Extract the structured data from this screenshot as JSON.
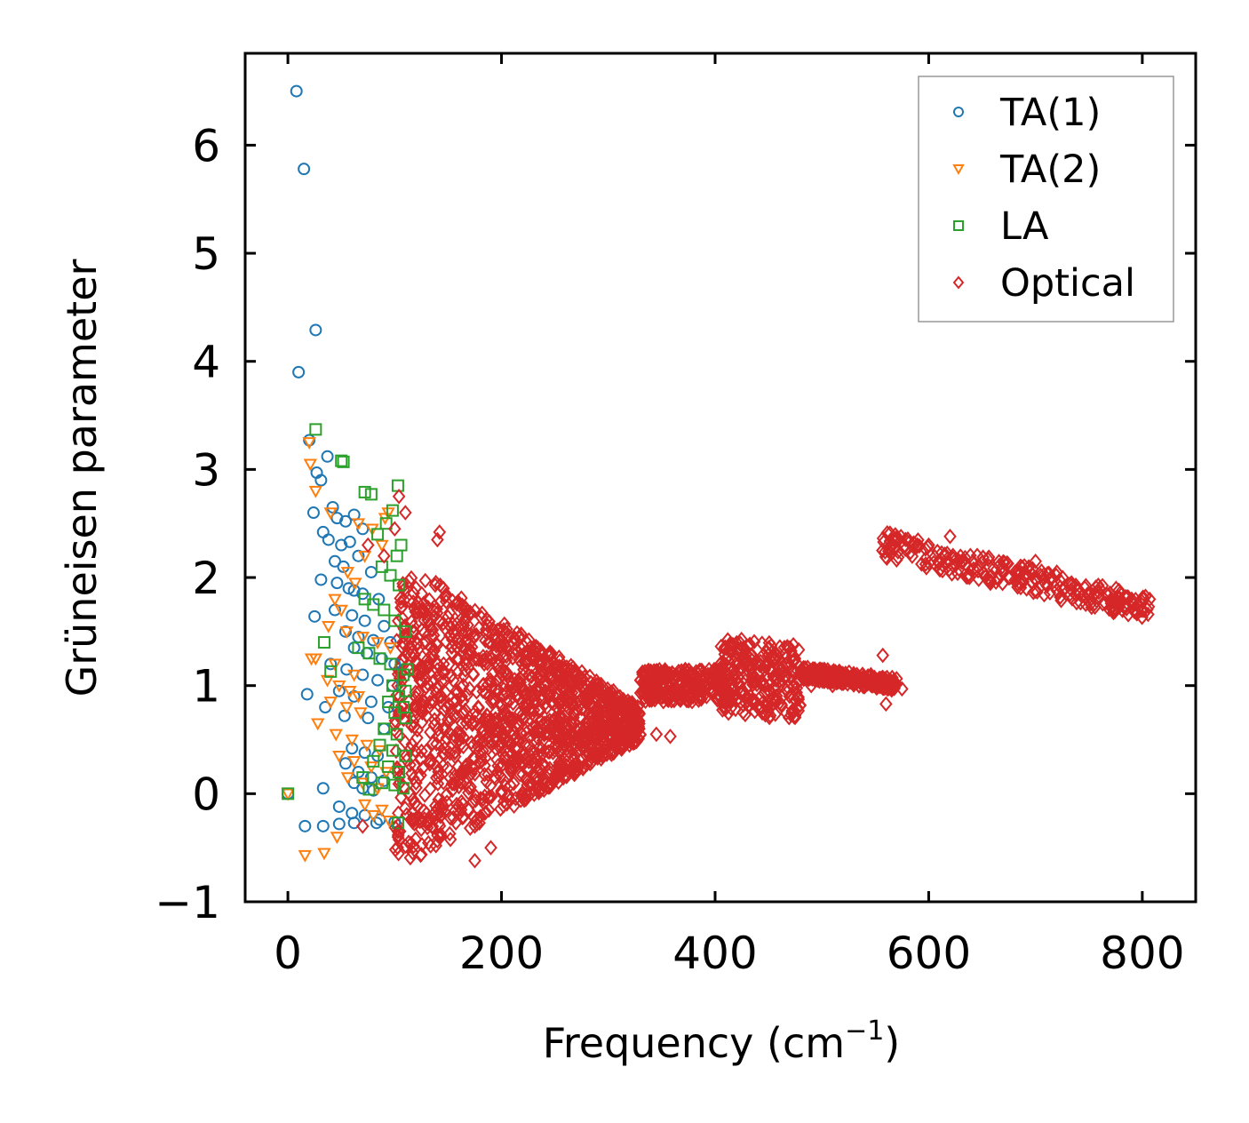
{
  "chart_data": {
    "type": "scatter",
    "title": "",
    "xlabel": "Frequency (cm",
    "xlabel_sup": "−1",
    "xlabel_close": ")",
    "ylabel": "Grüneisen parameter",
    "xlim": [
      -40,
      850
    ],
    "ylim": [
      -1,
      6.85
    ],
    "xticks": [
      0,
      200,
      400,
      600,
      800
    ],
    "xtick_labels": [
      "0",
      "200",
      "400",
      "600",
      "800"
    ],
    "yticks": [
      -1,
      0,
      1,
      2,
      3,
      4,
      5,
      6
    ],
    "ytick_labels": [
      "−1",
      "0",
      "1",
      "2",
      "3",
      "4",
      "5",
      "6"
    ],
    "legend_position": "top-right",
    "grid": false,
    "series": [
      {
        "name": "TA(1)",
        "marker": "circle",
        "color": "#1f77b4",
        "points": [
          [
            0,
            0
          ],
          [
            8,
            6.5
          ],
          [
            15,
            5.78
          ],
          [
            26,
            4.29
          ],
          [
            10,
            3.9
          ],
          [
            20,
            3.27
          ],
          [
            37,
            3.12
          ],
          [
            27,
            2.97
          ],
          [
            31,
            2.9
          ],
          [
            42,
            2.65
          ],
          [
            24,
            2.6
          ],
          [
            46,
            2.55
          ],
          [
            54,
            2.52
          ],
          [
            62,
            2.58
          ],
          [
            70,
            2.45
          ],
          [
            33,
            2.42
          ],
          [
            38,
            2.35
          ],
          [
            50,
            2.3
          ],
          [
            58,
            2.33
          ],
          [
            66,
            2.2
          ],
          [
            44,
            2.15
          ],
          [
            52,
            2.1
          ],
          [
            78,
            2.05
          ],
          [
            31,
            1.98
          ],
          [
            46,
            1.95
          ],
          [
            57,
            1.9
          ],
          [
            62,
            1.88
          ],
          [
            70,
            1.85
          ],
          [
            85,
            1.8
          ],
          [
            25,
            1.64
          ],
          [
            44,
            1.7
          ],
          [
            60,
            1.65
          ],
          [
            72,
            1.6
          ],
          [
            90,
            1.55
          ],
          [
            54,
            1.5
          ],
          [
            66,
            1.45
          ],
          [
            80,
            1.42
          ],
          [
            96,
            1.4
          ],
          [
            62,
            1.35
          ],
          [
            74,
            1.3
          ],
          [
            88,
            1.25
          ],
          [
            100,
            1.2
          ],
          [
            40,
            1.2
          ],
          [
            55,
            1.15
          ],
          [
            70,
            1.1
          ],
          [
            84,
            1.05
          ],
          [
            98,
            1.0
          ],
          [
            18,
            0.92
          ],
          [
            48,
            0.95
          ],
          [
            62,
            0.9
          ],
          [
            78,
            0.85
          ],
          [
            94,
            0.8
          ],
          [
            35,
            0.8
          ],
          [
            53,
            0.72
          ],
          [
            75,
            0.7
          ],
          [
            90,
            0.6
          ],
          [
            60,
            0.42
          ],
          [
            72,
            0.38
          ],
          [
            84,
            0.35
          ],
          [
            54,
            0.28
          ],
          [
            66,
            0.2
          ],
          [
            78,
            0.15
          ],
          [
            90,
            0.12
          ],
          [
            62,
            0.1
          ],
          [
            70,
            0.05
          ],
          [
            80,
            0.03
          ],
          [
            33,
            0.05
          ],
          [
            48,
            -0.12
          ],
          [
            60,
            -0.18
          ],
          [
            72,
            -0.2
          ],
          [
            86,
            -0.24
          ],
          [
            16,
            -0.3
          ],
          [
            33,
            -0.3
          ],
          [
            48,
            -0.28
          ],
          [
            62,
            -0.27
          ],
          [
            100,
            -0.26
          ],
          [
            83,
            -0.27
          ]
        ]
      },
      {
        "name": "TA(2)",
        "marker": "triangle",
        "color": "#ff7f0e",
        "points": [
          [
            0,
            0
          ],
          [
            20,
            3.25
          ],
          [
            21,
            3.05
          ],
          [
            26,
            2.8
          ],
          [
            40,
            2.6
          ],
          [
            66,
            2.5
          ],
          [
            79,
            2.45
          ],
          [
            91,
            2.55
          ],
          [
            94,
            2.6
          ],
          [
            88,
            2.3
          ],
          [
            72,
            2.2
          ],
          [
            56,
            2.05
          ],
          [
            63,
            1.95
          ],
          [
            44,
            1.8
          ],
          [
            50,
            1.7
          ],
          [
            38,
            1.55
          ],
          [
            55,
            1.5
          ],
          [
            70,
            1.45
          ],
          [
            84,
            1.4
          ],
          [
            96,
            1.35
          ],
          [
            22,
            1.25
          ],
          [
            26,
            1.25
          ],
          [
            44,
            1.2
          ],
          [
            62,
            1.1
          ],
          [
            37,
            1.05
          ],
          [
            48,
            1.0
          ],
          [
            58,
            0.95
          ],
          [
            66,
            0.9
          ],
          [
            40,
            0.85
          ],
          [
            55,
            0.8
          ],
          [
            68,
            0.75
          ],
          [
            28,
            0.65
          ],
          [
            45,
            0.55
          ],
          [
            60,
            0.5
          ],
          [
            74,
            0.45
          ],
          [
            86,
            0.4
          ],
          [
            48,
            0.35
          ],
          [
            62,
            0.3
          ],
          [
            78,
            0.25
          ],
          [
            92,
            0.2
          ],
          [
            56,
            0.15
          ],
          [
            70,
            0.1
          ],
          [
            84,
            0.05
          ],
          [
            72,
            -0.1
          ],
          [
            88,
            -0.15
          ],
          [
            46,
            -0.4
          ],
          [
            16,
            -0.57
          ],
          [
            34,
            -0.55
          ],
          [
            80,
            -0.2
          ],
          [
            95,
            -0.25
          ]
        ]
      },
      {
        "name": "LA",
        "marker": "square",
        "color": "#2ca02c",
        "points": [
          [
            0,
            0
          ],
          [
            26,
            3.37
          ],
          [
            50,
            3.08
          ],
          [
            52,
            3.07
          ],
          [
            103,
            2.85
          ],
          [
            72,
            2.79
          ],
          [
            78,
            2.77
          ],
          [
            98,
            2.62
          ],
          [
            92,
            2.5
          ],
          [
            84,
            2.4
          ],
          [
            106,
            2.3
          ],
          [
            102,
            2.2
          ],
          [
            88,
            2.1
          ],
          [
            96,
            2.02
          ],
          [
            104,
            1.93
          ],
          [
            72,
            1.8
          ],
          [
            80,
            1.75
          ],
          [
            90,
            1.7
          ],
          [
            100,
            1.6
          ],
          [
            110,
            1.5
          ],
          [
            34,
            1.4
          ],
          [
            66,
            1.35
          ],
          [
            76,
            1.3
          ],
          [
            86,
            1.25
          ],
          [
            96,
            1.2
          ],
          [
            112,
            1.15
          ],
          [
            40,
            1.13
          ],
          [
            108,
            1.1
          ],
          [
            98,
            1.0
          ],
          [
            110,
            0.95
          ],
          [
            104,
            0.9
          ],
          [
            94,
            0.85
          ],
          [
            108,
            0.8
          ],
          [
            100,
            0.75
          ],
          [
            110,
            0.7
          ],
          [
            90,
            0.6
          ],
          [
            102,
            0.55
          ],
          [
            86,
            0.45
          ],
          [
            98,
            0.4
          ],
          [
            110,
            0.35
          ],
          [
            80,
            0.3
          ],
          [
            94,
            0.25
          ],
          [
            104,
            0.2
          ],
          [
            70,
            0.15
          ],
          [
            88,
            0.1
          ],
          [
            100,
            0.08
          ],
          [
            108,
            0.05
          ],
          [
            76,
            0.04
          ],
          [
            103,
            -0.27
          ]
        ]
      },
      {
        "name": "Optical",
        "marker": "diamond",
        "color": "#d62728",
        "points": [
          [
            104,
            2.75
          ],
          [
            110,
            2.6
          ],
          [
            142,
            2.42
          ],
          [
            140,
            2.35
          ],
          [
            100,
            2.45
          ],
          [
            75,
            2.3
          ],
          [
            90,
            2.2
          ],
          [
            103,
            -0.35
          ],
          [
            70,
            -0.3
          ],
          [
            120,
            0.1
          ],
          [
            190,
            -0.5
          ],
          [
            175,
            -0.62
          ],
          [
            240,
            1.25
          ],
          [
            260,
            1.1
          ],
          [
            280,
            1.0
          ],
          [
            300,
            0.85
          ],
          [
            320,
            0.7
          ],
          [
            345,
            0.55
          ],
          [
            358,
            0.53
          ],
          [
            490,
            1.0
          ],
          [
            510,
            1.0
          ],
          [
            560,
            0.83
          ],
          [
            575,
            0.97
          ],
          [
            557,
            1.28
          ],
          [
            600,
            2.3
          ],
          [
            620,
            2.38
          ],
          [
            700,
            2.15
          ],
          [
            720,
            2.05
          ],
          [
            760,
            1.9
          ],
          [
            790,
            1.8
          ],
          [
            806,
            1.73
          ]
        ],
        "bands": [
          {
            "x_range": [
              100,
              330
            ],
            "y_range": [
              -0.6,
              2.0
            ]
          },
          {
            "x_range": [
              330,
              410
            ],
            "y_range": [
              0.75,
              1.3
            ]
          },
          {
            "x_range": [
              405,
              480
            ],
            "y_range": [
              0.75,
              1.6
            ]
          },
          {
            "x_range": [
              480,
              570
            ],
            "y_range": [
              0.95,
              1.25
            ]
          },
          {
            "x_range": [
              555,
              810
            ],
            "y_range": [
              1.7,
              2.4
            ]
          }
        ]
      }
    ]
  }
}
